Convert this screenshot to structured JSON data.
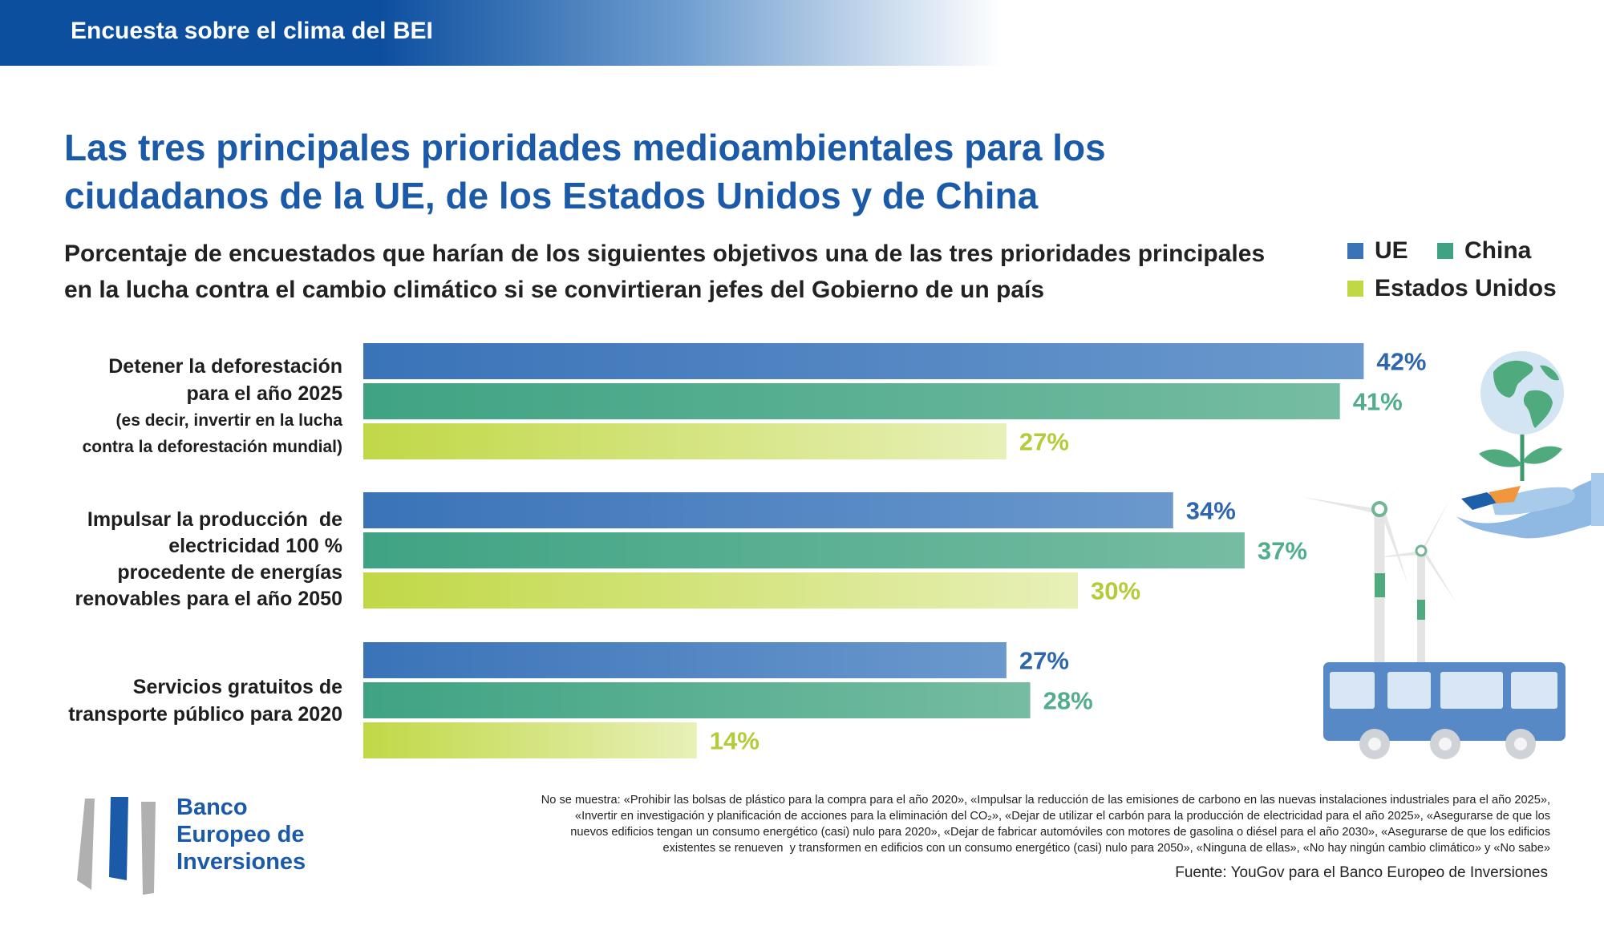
{
  "header": {
    "banner": "Encuesta sobre el clima del BEI"
  },
  "chart_data": {
    "type": "bar",
    "orientation": "horizontal",
    "title": "Las tres principales prioridades medioambientales para los ciudadanos de la UE, de los Estados Unidos y de China",
    "title_lines": [
      "Las tres principales prioridades medioambientales para los",
      "ciudadanos de la UE, de los Estados Unidos y de China"
    ],
    "subtitle_lines": [
      "Porcentaje de encuestados que harían de los siguientes objetivos una de las tres prioridades principales",
      "en la lucha contra el cambio climático si se convirtieran jefes del Gobierno de un país"
    ],
    "categories": [
      {
        "lines": [
          "Detener la deforestación",
          "para el año 2025",
          "(es decir, invertir en la lucha",
          "contra la deforestación mundial)"
        ]
      },
      {
        "lines": [
          "Impulsar la producción  de",
          "electricidad 100 %",
          "procedente de energías",
          "renovables para el año 2050"
        ]
      },
      {
        "lines": [
          "Servicios gratuitos de",
          "transporte público para 2020"
        ]
      }
    ],
    "series": [
      {
        "name": "UE",
        "values": [
          42,
          34,
          27
        ],
        "labels": [
          "42%",
          "34%",
          "27%"
        ],
        "color": "#3a73b8",
        "color_light": "#6b99cd",
        "label_color": "#2e66ad"
      },
      {
        "name": "China",
        "values": [
          41,
          37,
          28
        ],
        "labels": [
          "41%",
          "37%",
          "28%"
        ],
        "color": "#3fa383",
        "color_light": "#76bca2",
        "label_color": "#52ad8b"
      },
      {
        "name": "Estados Unidos",
        "values": [
          27,
          30,
          14
        ],
        "labels": [
          "27%",
          "30%",
          "14%"
        ],
        "color": "#c1d846",
        "color_light": "#e8f0b8",
        "label_color": "#b3cc3a"
      }
    ],
    "xlim": [
      0,
      45
    ],
    "legend_position": "top-right",
    "grid": false
  },
  "footer": {
    "logo_text": [
      "Banco",
      "Europeo de",
      "Inversiones"
    ],
    "note_lines": [
      "No se muestra: «Prohibir las bolsas de plástico para la compra para el año 2020», «Impulsar la reducción de las emisiones de carbono en las nuevas instalaciones industriales para el año 2025»,",
      "«Invertir en investigación y planificación de acciones para la eliminación del CO₂», «Dejar de utilizar el carbón para la producción de electricidad para el año 2025», «Asegurarse de que los",
      "nuevos edificios tengan un consumo energético (casi) nulo para 2020», «Dejar de fabricar automóviles con motores de gasolina o diésel para el año 2030», «Asegurarse de que los edificios",
      "existentes se renueven  y transformen en edificios con un consumo energético (casi) nulo para 2050», «Ninguna de ellas», «No hay ningún cambio climático» y «No sabe»"
    ],
    "source": "Fuente: YouGov para el Banco Europeo de Inversiones"
  }
}
